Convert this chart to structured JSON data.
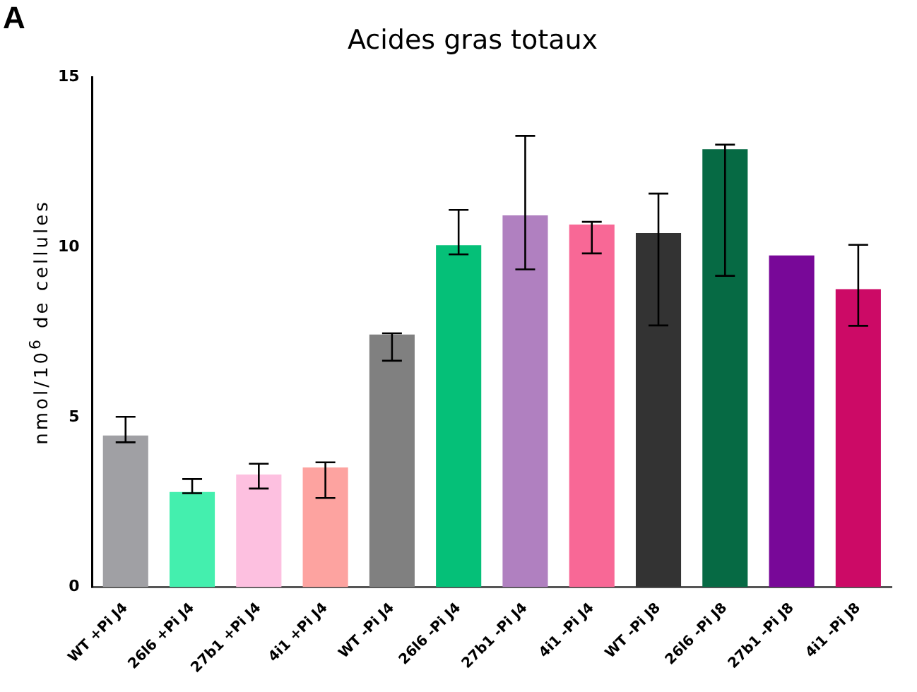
{
  "chart_data": {
    "type": "bar",
    "title": "Acides gras totaux",
    "ylabel": "nmol/10$^{6}$ de cellules",
    "annotations": [
      "A"
    ],
    "categories": [
      "WT +Pi J4",
      "26l6 +Pi J4",
      "27b1 +Pi J4",
      "4i1 +Pi J4",
      "WT -Pi J4",
      "26l6 -Pi J4",
      "27b1 -Pi J4",
      "4i1 -Pi J4",
      "WT -Pi J8",
      "26l6 -Pi J8",
      "27b1 -Pi J8",
      "4i1 -Pi J8"
    ],
    "values": [
      4.46,
      2.8,
      3.31,
      3.52,
      7.43,
      10.06,
      10.94,
      10.67,
      10.42,
      12.89,
      9.76,
      8.77
    ],
    "errors": [
      [
        4.26,
        5.01
      ],
      [
        2.76,
        3.18
      ],
      [
        2.9,
        3.63
      ],
      [
        2.62,
        3.67
      ],
      [
        6.66,
        7.47
      ],
      [
        9.79,
        11.1
      ],
      [
        9.35,
        13.28
      ],
      [
        9.82,
        10.75
      ],
      [
        7.7,
        11.58
      ],
      [
        9.16,
        13.02
      ],
      null,
      [
        7.69,
        10.07
      ]
    ],
    "colors": [
      "#a0a0a4",
      "#44efae",
      "#fdc0e0",
      "#fda3a0",
      "#808080",
      "#05c078",
      "#b080c0",
      "#f86896",
      "#333333",
      "#066a44",
      "#780898",
      "#cc0a66"
    ],
    "ylim": [
      0,
      15
    ],
    "yticks": [
      0,
      5,
      10,
      15
    ],
    "grid": false,
    "legend": false
  }
}
